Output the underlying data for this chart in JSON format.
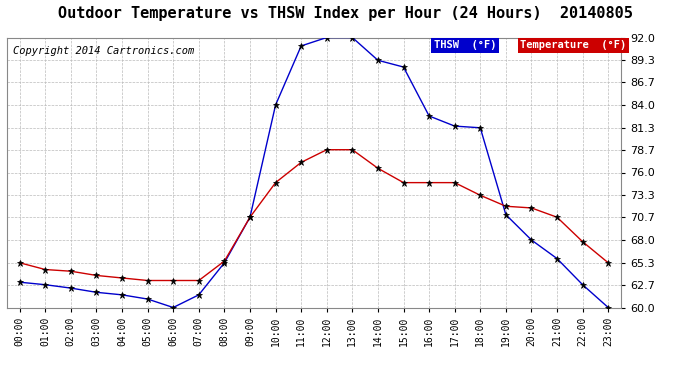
{
  "title": "Outdoor Temperature vs THSW Index per Hour (24 Hours)  20140805",
  "copyright": "Copyright 2014 Cartronics.com",
  "legend_thsw": "THSW  (°F)",
  "legend_temp": "Temperature  (°F)",
  "hours": [
    0,
    1,
    2,
    3,
    4,
    5,
    6,
    7,
    8,
    9,
    10,
    11,
    12,
    13,
    14,
    15,
    16,
    17,
    18,
    19,
    20,
    21,
    22,
    23
  ],
  "thsw": [
    63.0,
    62.7,
    62.3,
    61.8,
    61.5,
    61.0,
    60.0,
    61.5,
    65.3,
    70.7,
    84.0,
    91.0,
    92.0,
    92.0,
    89.3,
    88.5,
    82.7,
    81.5,
    81.3,
    71.0,
    68.0,
    65.8,
    62.7,
    60.0
  ],
  "temp": [
    65.3,
    64.5,
    64.3,
    63.8,
    63.5,
    63.2,
    63.2,
    63.2,
    65.5,
    70.7,
    74.8,
    77.2,
    78.7,
    78.7,
    76.5,
    74.8,
    74.8,
    74.8,
    73.3,
    72.0,
    71.8,
    70.7,
    67.8,
    65.3
  ],
  "ylim": [
    60.0,
    92.0
  ],
  "yticks": [
    60.0,
    62.7,
    65.3,
    68.0,
    70.7,
    73.3,
    76.0,
    78.7,
    81.3,
    84.0,
    86.7,
    89.3,
    92.0
  ],
  "thsw_color": "#0000cc",
  "temp_color": "#cc0000",
  "marker_color": "#000000",
  "bg_color": "#ffffff",
  "plot_bg_color": "#ffffff",
  "grid_color": "#bbbbbb",
  "title_fontsize": 11,
  "copyright_fontsize": 7.5,
  "legend_thsw_bg": "#0000cc",
  "legend_temp_bg": "#cc0000"
}
